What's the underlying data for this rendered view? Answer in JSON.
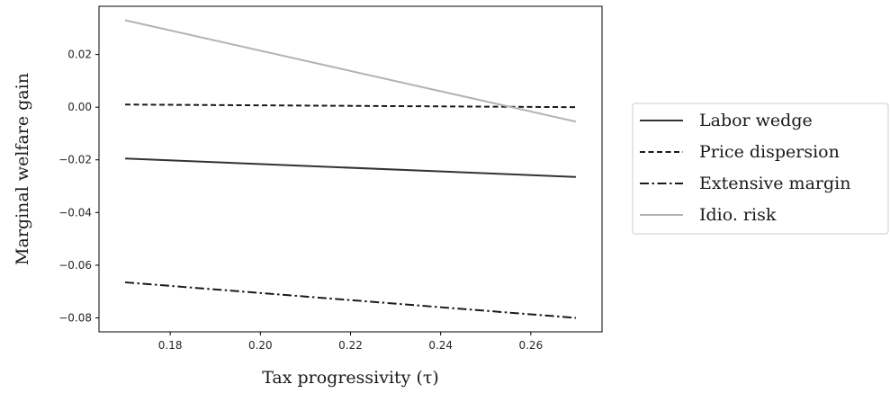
{
  "chart_data": {
    "type": "line",
    "title": "",
    "xlabel": "Tax progressivity (τ)",
    "ylabel": "Marginal welfare gain",
    "xlim": [
      0.1642,
      0.2758
    ],
    "ylim": [
      -0.0853,
      0.0383
    ],
    "xticks": [
      0.18,
      0.2,
      0.22,
      0.24,
      0.26
    ],
    "xtick_labels": [
      "0.18",
      "0.20",
      "0.22",
      "0.24",
      "0.26"
    ],
    "yticks": [
      0.02,
      0.0,
      -0.02,
      -0.04,
      -0.06,
      -0.08
    ],
    "ytick_labels": [
      "0.02",
      "0.00",
      "−0.02",
      "−0.04",
      "−0.06",
      "−0.08"
    ],
    "grid": false,
    "legend_position": "outside-right",
    "series": [
      {
        "name": "Labor wedge",
        "color": "#333333",
        "dash": "solid",
        "x": [
          0.17,
          0.27
        ],
        "y": [
          -0.0195,
          -0.0265
        ]
      },
      {
        "name": "Price dispersion",
        "color": "#1a1a1a",
        "dash": "dashed",
        "x": [
          0.17,
          0.27
        ],
        "y": [
          0.001,
          0.0
        ]
      },
      {
        "name": "Extensive margin",
        "color": "#1a1a1a",
        "dash": "dashdot",
        "x": [
          0.17,
          0.27
        ],
        "y": [
          -0.0665,
          -0.08
        ]
      },
      {
        "name": "Idio. risk",
        "color": "#b3b3b3",
        "dash": "solid",
        "x": [
          0.17,
          0.27
        ],
        "y": [
          0.033,
          -0.0055
        ]
      }
    ]
  }
}
